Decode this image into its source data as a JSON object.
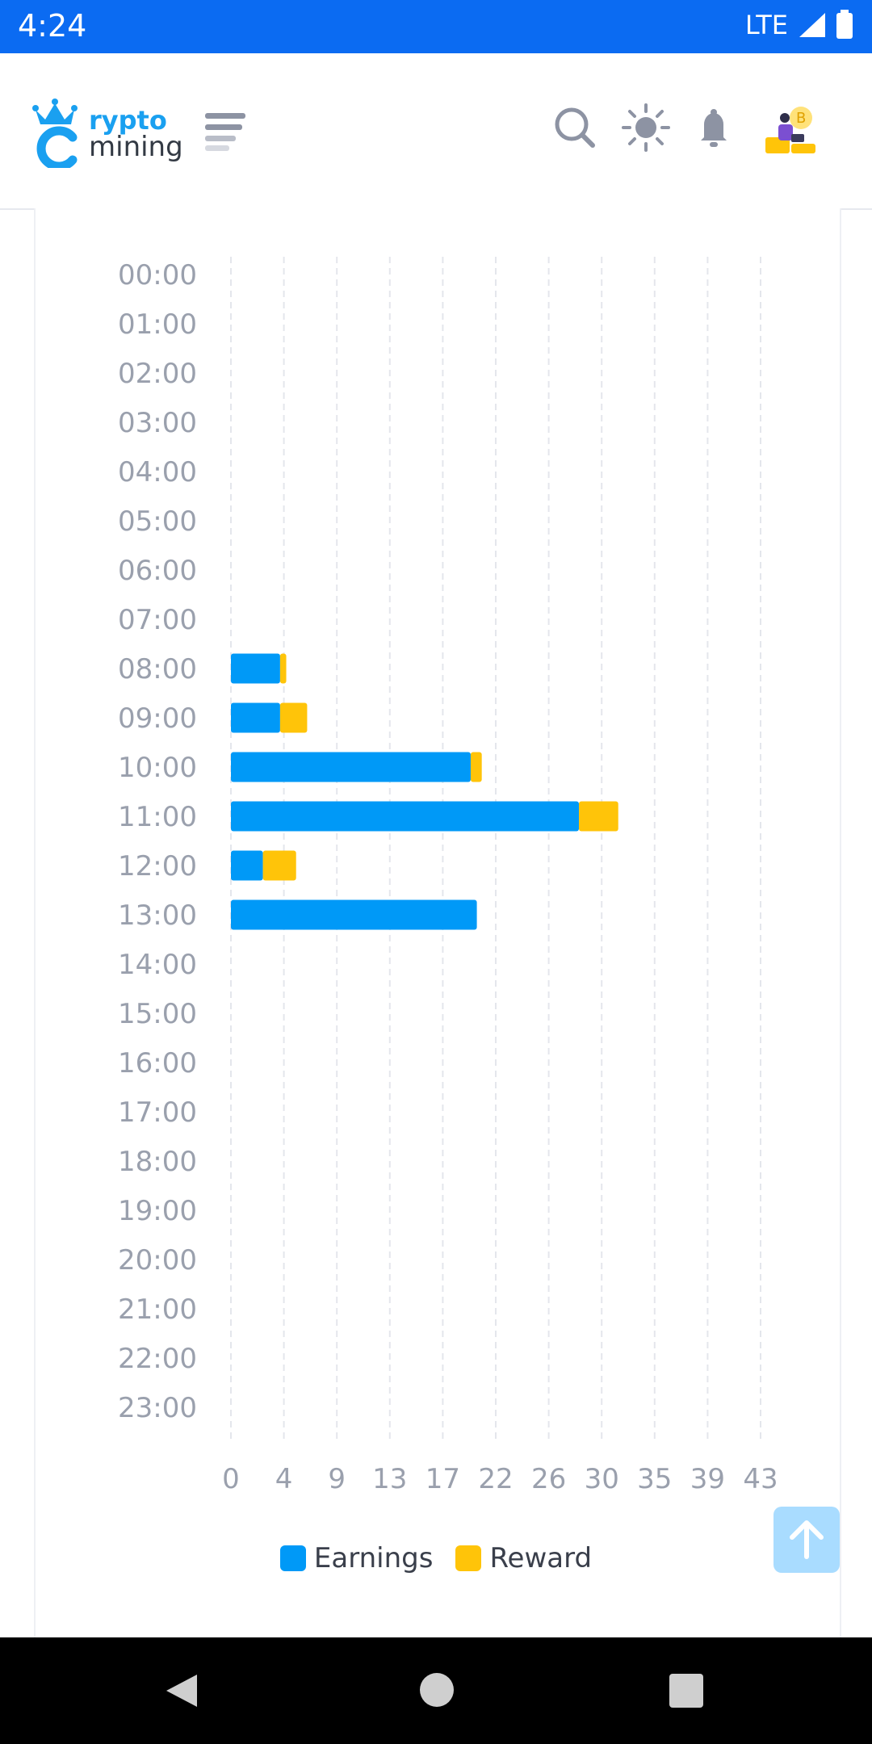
{
  "status": {
    "time": "4:24",
    "network": "LTE"
  },
  "header": {
    "logo_line1": "rypto",
    "logo_line2": "mining",
    "icons": [
      "menu-icon",
      "search-icon",
      "sun-icon",
      "bell-icon",
      "avatar"
    ]
  },
  "colors": {
    "earnings": "#0099f7",
    "reward": "#ffc409",
    "grid": "#e4e6ec",
    "tick": "#9aa0ad"
  },
  "chart_data": {
    "type": "bar",
    "orientation": "horizontal",
    "stacked": true,
    "categories": [
      "00:00",
      "01:00",
      "02:00",
      "03:00",
      "04:00",
      "05:00",
      "06:00",
      "07:00",
      "08:00",
      "09:00",
      "10:00",
      "11:00",
      "12:00",
      "13:00",
      "14:00",
      "15:00",
      "16:00",
      "17:00",
      "18:00",
      "19:00",
      "20:00",
      "21:00",
      "22:00",
      "23:00"
    ],
    "series": [
      {
        "name": "Earnings",
        "values": [
          0,
          0,
          0,
          0,
          0,
          0,
          0,
          0,
          4,
          4,
          19.5,
          28.3,
          2.6,
          20,
          0,
          0,
          0,
          0,
          0,
          0,
          0,
          0,
          0,
          0
        ]
      },
      {
        "name": "Reward",
        "values": [
          0,
          0,
          0,
          0,
          0,
          0,
          0,
          0,
          0.5,
          2.2,
          0.9,
          3.2,
          2.7,
          0,
          0,
          0,
          0,
          0,
          0,
          0,
          0,
          0,
          0,
          0
        ]
      }
    ],
    "x_ticks": [
      "0",
      "4",
      "9",
      "13",
      "17",
      "22",
      "26",
      "30",
      "35",
      "39",
      "43"
    ],
    "xlim": [
      0,
      43.6
    ],
    "grid": true,
    "legend_position": "bottom"
  }
}
